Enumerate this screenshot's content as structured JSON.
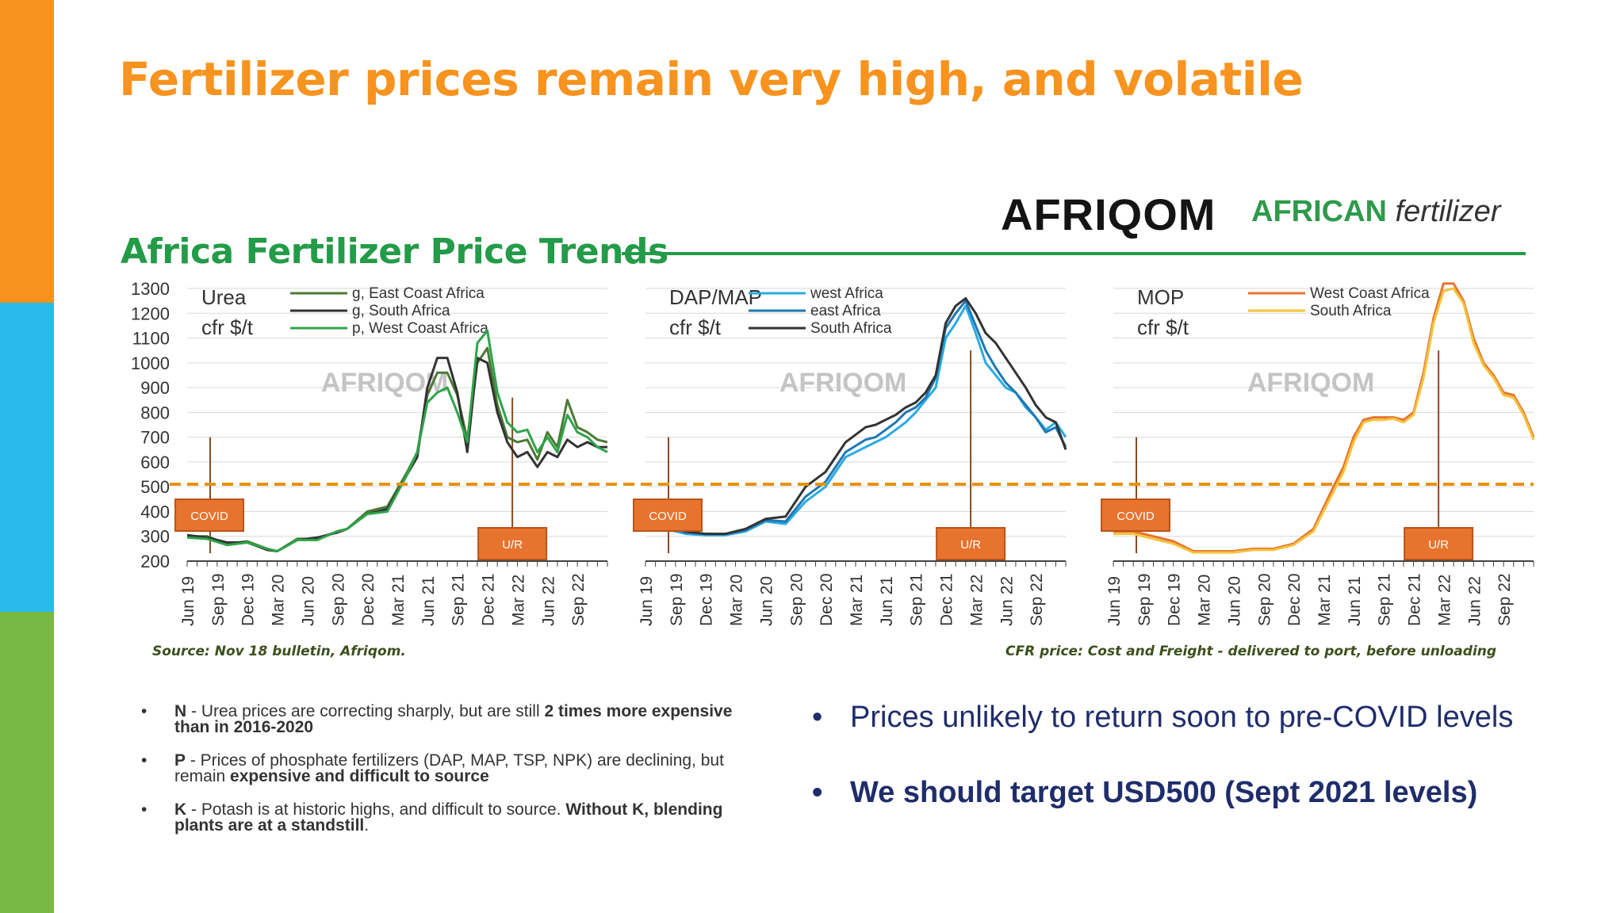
{
  "slide": {
    "title": "Fertilizer prices remain very high, and volatile",
    "brands": {
      "afriqom": "AFRIQOM",
      "african_bold": "AFRICAN",
      "african_italic": "fertilizer"
    },
    "figure_title": "Africa Fertilizer Price Trends",
    "source_caption": "Source: Nov 18 bulletin, Afriqom.",
    "cfr_caption": "CFR price: Cost and Freight - delivered to port, before unloading",
    "left_bullets": [
      {
        "dot": "•",
        "lead": "N",
        "text": " - Urea prices are correcting sharply, but are still ",
        "emph": "2 times more expensive than in 2016-2020",
        "tail": ""
      },
      {
        "dot": "•",
        "lead": "P",
        "text": " - Prices of phosphate fertilizers (DAP, MAP, TSP, NPK) are declining, but remain ",
        "emph": "expensive and difficult to source",
        "tail": ""
      },
      {
        "dot": "•",
        "lead": "K",
        "text": " - Potash is at historic highs, and difficult to source. ",
        "emph": "Without K, blending plants are at a standstill",
        "tail": "."
      }
    ],
    "right_bullets": [
      {
        "dot": "•",
        "text": "Prices unlikely to return soon to pre-COVID levels",
        "bold": false
      },
      {
        "dot": "•",
        "text": "We should target USD500 (Sept 2021 levels)",
        "bold": true
      }
    ]
  },
  "colors": {
    "orange": "#f7931e",
    "blue": "#29bbea",
    "green": "#79b844",
    "figure_green": "#239b48",
    "navy": "#1f2d6b",
    "dashed_line": "#e8920a",
    "label_box": "#e8732e"
  },
  "chart_data": [
    {
      "type": "line",
      "panel_title": "Urea",
      "panel_subtitle": "cfr $/t",
      "watermark": "AFRIQOM",
      "y_ticks": [
        1300,
        1200,
        1100,
        1000,
        900,
        800,
        700,
        600,
        500,
        400,
        300,
        200
      ],
      "ylim": [
        200,
        1300
      ],
      "x_ticks": [
        "Jun 19",
        "Sep 19",
        "Dec 19",
        "Mar 20",
        "Jun 20",
        "Sep 20",
        "Dec 20",
        "Mar 21",
        "Jun 21",
        "Sep 21",
        "Dec 21",
        "Mar 22",
        "Jun 22",
        "Sep 22"
      ],
      "xlim": [
        0,
        42
      ],
      "grid": true,
      "legend_position": "top",
      "reference_line": 510,
      "annotations": [
        {
          "label": "COVID",
          "x": 2.3,
          "y": 700
        },
        {
          "label": "U/R",
          "x": 32.5,
          "y": 860
        }
      ],
      "series": [
        {
          "name": "g, East Coast Africa",
          "color": "#4a7a34",
          "x": [
            0,
            2,
            4,
            6,
            8,
            9,
            11,
            13,
            15,
            16,
            18,
            20,
            22,
            23,
            24,
            25,
            26,
            27,
            28,
            29,
            30,
            31,
            32,
            33,
            34,
            35,
            36,
            37,
            38,
            39,
            40,
            41,
            42
          ],
          "y": [
            300,
            300,
            270,
            280,
            250,
            240,
            290,
            290,
            320,
            330,
            400,
            420,
            560,
            640,
            870,
            960,
            960,
            870,
            690,
            1000,
            1060,
            830,
            700,
            680,
            690,
            610,
            720,
            660,
            850,
            740,
            720,
            690,
            680
          ]
        },
        {
          "name": "g, South Africa",
          "color": "#333333",
          "x": [
            0,
            2,
            4,
            6,
            8,
            9,
            11,
            13,
            15,
            16,
            18,
            20,
            22,
            23,
            24,
            25,
            26,
            27,
            28,
            29,
            30,
            31,
            32,
            33,
            34,
            35,
            36,
            37,
            38,
            39,
            40,
            41,
            42
          ],
          "y": [
            305,
            295,
            275,
            275,
            245,
            240,
            285,
            295,
            315,
            330,
            390,
            410,
            550,
            620,
            900,
            1020,
            1020,
            880,
            640,
            1020,
            1000,
            800,
            680,
            620,
            640,
            580,
            640,
            620,
            690,
            660,
            680,
            660,
            660
          ]
        },
        {
          "name": "p, West Coast Africa",
          "color": "#2ea44a",
          "x": [
            0,
            2,
            4,
            6,
            8,
            9,
            11,
            13,
            15,
            16,
            18,
            20,
            22,
            23,
            24,
            25,
            26,
            27,
            28,
            29,
            30,
            31,
            32,
            33,
            34,
            35,
            36,
            37,
            38,
            39,
            40,
            41,
            42
          ],
          "y": [
            295,
            290,
            265,
            275,
            250,
            240,
            285,
            285,
            320,
            330,
            390,
            400,
            550,
            640,
            840,
            880,
            900,
            800,
            680,
            1080,
            1130,
            880,
            760,
            720,
            730,
            640,
            700,
            640,
            790,
            720,
            700,
            660,
            640
          ]
        }
      ]
    },
    {
      "type": "line",
      "panel_title": "DAP/MAP",
      "panel_subtitle": "cfr $/t",
      "watermark": "AFRIQOM",
      "x_ticks": [
        "Jun 19",
        "Sep 19",
        "Dec 19",
        "Mar 20",
        "Jun 20",
        "Sep 20",
        "Dec 20",
        "Mar 21",
        "Jun 21",
        "Sep 21",
        "Dec 21",
        "Mar 22",
        "Jun 22",
        "Sep 22"
      ],
      "xlim": [
        0,
        42
      ],
      "ylim": [
        200,
        1300
      ],
      "grid": true,
      "legend_position": "top",
      "reference_line": 510,
      "annotations": [
        {
          "label": "COVID",
          "x": 2.3,
          "y": 700
        },
        {
          "label": "U/R",
          "x": 32.5,
          "y": 1050
        }
      ],
      "series": [
        {
          "name": "west Africa",
          "color": "#29abe2",
          "x": [
            0,
            2,
            4,
            6,
            8,
            10,
            12,
            14,
            16,
            18,
            20,
            22,
            23,
            24,
            25,
            26,
            27,
            28,
            29,
            30,
            31,
            32,
            33,
            34,
            35,
            36,
            37,
            38,
            39,
            40,
            41,
            42
          ],
          "y": [
            370,
            330,
            310,
            305,
            305,
            320,
            360,
            350,
            440,
            500,
            620,
            660,
            680,
            700,
            730,
            760,
            800,
            850,
            900,
            1100,
            1160,
            1230,
            1120,
            1000,
            950,
            900,
            880,
            820,
            780,
            730,
            760,
            700
          ]
        },
        {
          "name": "east Africa",
          "color": "#1f78b4",
          "x": [
            0,
            2,
            4,
            6,
            8,
            10,
            12,
            14,
            16,
            18,
            20,
            22,
            23,
            24,
            25,
            26,
            27,
            28,
            29,
            30,
            31,
            32,
            33,
            34,
            35,
            36,
            37,
            38,
            39,
            40,
            41,
            42
          ],
          "y": [
            380,
            340,
            315,
            310,
            310,
            325,
            365,
            360,
            460,
            520,
            640,
            690,
            700,
            730,
            760,
            800,
            820,
            860,
            940,
            1140,
            1200,
            1250,
            1150,
            1050,
            980,
            920,
            880,
            830,
            780,
            720,
            740,
            660
          ]
        },
        {
          "name": "South Africa",
          "color": "#333333",
          "x": [
            0,
            2,
            4,
            6,
            8,
            10,
            12,
            14,
            16,
            18,
            20,
            22,
            23,
            24,
            25,
            26,
            27,
            28,
            29,
            30,
            31,
            32,
            33,
            34,
            35,
            36,
            37,
            38,
            39,
            40,
            41,
            42
          ],
          "y": [
            390,
            350,
            320,
            310,
            310,
            330,
            370,
            380,
            500,
            560,
            680,
            740,
            750,
            770,
            790,
            820,
            840,
            880,
            950,
            1160,
            1230,
            1260,
            1200,
            1120,
            1080,
            1020,
            960,
            900,
            830,
            780,
            760,
            650
          ]
        }
      ]
    },
    {
      "type": "line",
      "panel_title": "MOP",
      "panel_subtitle": "cfr $/t",
      "watermark": "AFRIQOM",
      "x_ticks": [
        "Jun 19",
        "Sep 19",
        "Dec 19",
        "Mar 20",
        "Jun 20",
        "Sep 20",
        "Dec 20",
        "Mar 21",
        "Jun 21",
        "Sep 21",
        "Dec 21",
        "Mar 22",
        "Jun 22",
        "Sep 22"
      ],
      "xlim": [
        0,
        42
      ],
      "ylim": [
        200,
        1300
      ],
      "grid": true,
      "legend_position": "top",
      "reference_line": 510,
      "annotations": [
        {
          "label": "COVID",
          "x": 2.3,
          "y": 700
        },
        {
          "label": "U/R",
          "x": 32.5,
          "y": 1050
        }
      ],
      "series": [
        {
          "name": "West Coast Africa",
          "color": "#e8732e",
          "x": [
            0,
            2,
            4,
            6,
            8,
            10,
            12,
            14,
            16,
            18,
            20,
            22,
            23,
            24,
            25,
            26,
            27,
            28,
            29,
            30,
            31,
            32,
            33,
            34,
            35,
            36,
            37,
            38,
            39,
            40,
            41,
            42
          ],
          "y": [
            320,
            320,
            300,
            280,
            240,
            240,
            240,
            250,
            250,
            270,
            330,
            500,
            580,
            700,
            770,
            780,
            780,
            780,
            770,
            800,
            960,
            1180,
            1320,
            1320,
            1250,
            1100,
            1000,
            950,
            880,
            870,
            800,
            700
          ]
        },
        {
          "name": "South Africa",
          "color": "#f5c33b",
          "x": [
            0,
            2,
            4,
            6,
            8,
            10,
            12,
            14,
            16,
            18,
            20,
            22,
            23,
            24,
            25,
            26,
            27,
            28,
            29,
            30,
            31,
            32,
            33,
            34,
            35,
            36,
            37,
            38,
            39,
            40,
            41,
            42
          ],
          "y": [
            310,
            310,
            290,
            270,
            235,
            235,
            235,
            245,
            245,
            265,
            320,
            480,
            560,
            680,
            760,
            770,
            770,
            775,
            760,
            790,
            940,
            1160,
            1290,
            1300,
            1240,
            1080,
            990,
            940,
            870,
            860,
            790,
            690
          ]
        }
      ]
    }
  ]
}
